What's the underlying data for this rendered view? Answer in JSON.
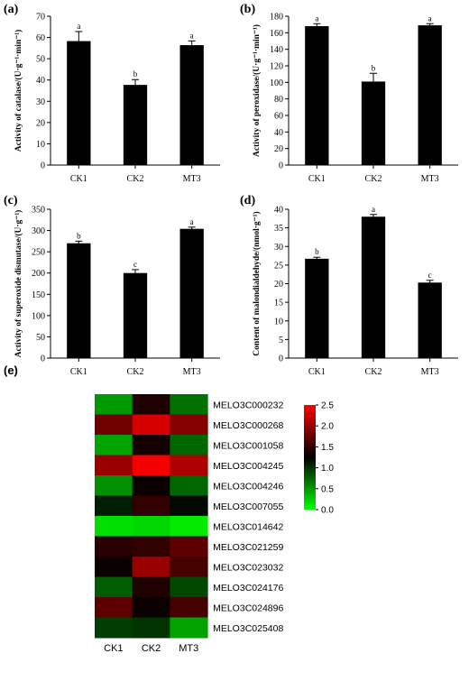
{
  "chart_data": [
    {
      "panel": "(a)",
      "type": "bar",
      "categories": [
        "CK1",
        "CK2",
        "MT3"
      ],
      "values": [
        58.3,
        37.7,
        56.4
      ],
      "errors": [
        4.5,
        2.5,
        2.0
      ],
      "letters": [
        "a",
        "b",
        "a"
      ],
      "ylabel": "Activity of catalase/(U·g⁻¹·min⁻¹)",
      "ylim": [
        0,
        70
      ],
      "yticks": [
        "0",
        "10",
        "20",
        "30",
        "40",
        "50",
        "60",
        "70"
      ]
    },
    {
      "panel": "(b)",
      "type": "bar",
      "categories": [
        "CK1",
        "CK2",
        "MT3"
      ],
      "values": [
        168,
        101,
        169
      ],
      "errors": [
        3,
        10,
        2
      ],
      "letters": [
        "a",
        "b",
        "a"
      ],
      "ylabel": "Activity of peroxidase/(U·g⁻¹·min⁻¹)",
      "ylim": [
        0,
        180
      ],
      "yticks": [
        "0",
        "20",
        "40",
        "60",
        "80",
        "100",
        "120",
        "140",
        "160",
        "180"
      ]
    },
    {
      "panel": "(c)",
      "type": "bar",
      "categories": [
        "CK1",
        "CK2",
        "MT3"
      ],
      "values": [
        270,
        200,
        304
      ],
      "errors": [
        5,
        8,
        4
      ],
      "letters": [
        "b",
        "c",
        "a"
      ],
      "ylabel": "Activity of superoxide dismutase/(U·g⁻¹)",
      "ylim": [
        0,
        350
      ],
      "yticks": [
        "0",
        "50",
        "100",
        "150",
        "200",
        "250",
        "300",
        "350"
      ]
    },
    {
      "panel": "(d)",
      "type": "bar",
      "categories": [
        "CK1",
        "CK2",
        "MT3"
      ],
      "values": [
        26.7,
        38.0,
        20.3
      ],
      "errors": [
        0.4,
        0.6,
        0.6
      ],
      "letters": [
        "b",
        "a",
        "c"
      ],
      "ylabel": "Content of malondialdehyde/(nmol·g⁻¹)",
      "ylim": [
        0,
        40
      ],
      "yticks": [
        "0",
        "5",
        "10",
        "15",
        "20",
        "25",
        "30",
        "35",
        "40"
      ]
    },
    {
      "panel": "(e)",
      "type": "heatmap",
      "columns": [
        "CK1",
        "CK2",
        "MT3"
      ],
      "rows": [
        "MELO3C000232",
        "MELO3C000268",
        "MELO3C001058",
        "MELO3C004245",
        "MELO3C004246",
        "MELO3C007055",
        "MELO3C014642",
        "MELO3C021259",
        "MELO3C023032",
        "MELO3C024176",
        "MELO3C024896",
        "MELO3C025408"
      ],
      "values": [
        [
          0.5,
          1.4,
          0.7
        ],
        [
          1.8,
          2.3,
          1.9
        ],
        [
          0.45,
          1.35,
          0.75
        ],
        [
          2.0,
          2.45,
          2.1
        ],
        [
          0.55,
          1.3,
          0.75
        ],
        [
          1.1,
          1.5,
          1.2
        ],
        [
          0.15,
          0.2,
          0.1
        ],
        [
          1.45,
          1.5,
          1.7
        ],
        [
          1.3,
          2.0,
          1.6
        ],
        [
          0.8,
          1.4,
          0.9
        ],
        [
          1.7,
          1.3,
          1.6
        ],
        [
          0.95,
          1.0,
          0.45
        ]
      ],
      "colorscale": {
        "low": "#00ff00",
        "mid": "#000000",
        "high": "#ff0000"
      },
      "colorbar": {
        "range": [
          0.0,
          2.5
        ],
        "ticks": [
          "0.0",
          "0.5",
          "1.0",
          "1.5",
          "2.0",
          "2.5"
        ]
      }
    }
  ]
}
